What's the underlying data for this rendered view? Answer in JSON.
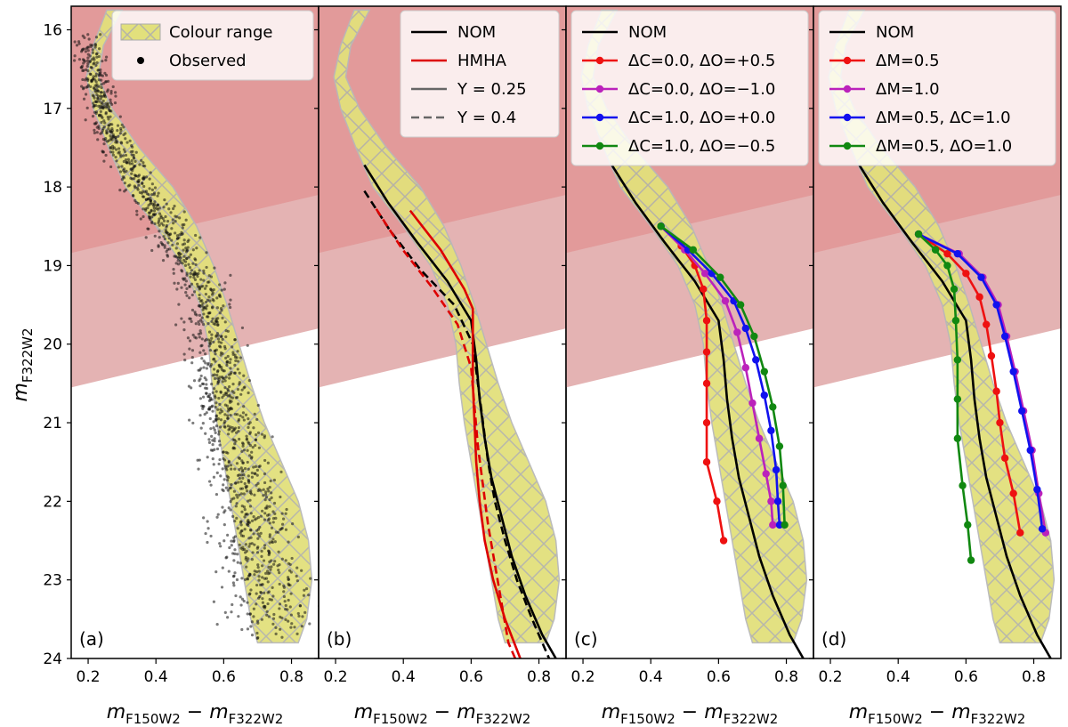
{
  "figure": {
    "y_axis_label": "m",
    "y_axis_label_sub": "F322W2",
    "x_axis_label_parts": [
      "m",
      "F150W2",
      " − m",
      "F322W2"
    ]
  },
  "chart_data": [
    {
      "panel": "(a)",
      "type": "scatter",
      "xlim": [
        0.15,
        0.88
      ],
      "ylim": [
        24,
        15.7
      ],
      "xticks": [
        "0.2",
        "0.4",
        "0.6",
        "0.8"
      ],
      "yticks": [
        "16",
        "17",
        "18",
        "19",
        "20",
        "21",
        "22",
        "23",
        "24"
      ],
      "shading": {
        "dark_band_below": [
          18.84,
          18.1
        ],
        "light_band_below": [
          20.55,
          19.8
        ]
      },
      "legend": [
        {
          "label": "Colour range",
          "kind": "patch"
        },
        {
          "label": "Observed",
          "kind": "dot"
        }
      ],
      "observed_ridge": {
        "y": [
          16.0,
          16.5,
          17.0,
          17.5,
          18.0,
          18.5,
          19.0,
          19.5,
          20.0,
          20.5,
          21.0,
          21.5,
          22.0,
          22.5,
          23.0,
          23.5
        ],
        "x": [
          0.19,
          0.21,
          0.24,
          0.29,
          0.35,
          0.43,
          0.5,
          0.55,
          0.57,
          0.59,
          0.61,
          0.64,
          0.67,
          0.69,
          0.72,
          0.75
        ],
        "n_points": 1500
      }
    },
    {
      "panel": "(b)",
      "type": "line",
      "series": [
        {
          "name": "NOM",
          "color": "#000000",
          "dash": false,
          "y": [
            17.72,
            18.2,
            18.7,
            19.2,
            19.7,
            20.2,
            20.7,
            21.2,
            21.7,
            22.2,
            22.7,
            23.2,
            23.7,
            24.0
          ],
          "x": [
            0.285,
            0.355,
            0.44,
            0.53,
            0.6,
            0.615,
            0.625,
            0.64,
            0.66,
            0.69,
            0.72,
            0.76,
            0.81,
            0.85
          ]
        },
        {
          "name": "NOM Y=0.4",
          "color": "#000000",
          "dash": true,
          "y": [
            18.05,
            18.55,
            19.05,
            19.5,
            20.0,
            20.5,
            21.0,
            21.5,
            22.0,
            22.5,
            23.0,
            23.5,
            24.0
          ],
          "x": [
            0.285,
            0.36,
            0.45,
            0.55,
            0.605,
            0.62,
            0.635,
            0.65,
            0.67,
            0.7,
            0.735,
            0.78,
            0.83
          ]
        },
        {
          "name": "HMHA",
          "color": "#dd0000",
          "dash": false,
          "y": [
            18.3,
            18.8,
            19.3,
            19.55,
            20.0,
            20.5,
            21.0,
            21.5,
            22.0,
            22.5,
            23.0,
            23.5,
            24.0
          ],
          "x": [
            0.42,
            0.51,
            0.58,
            0.605,
            0.605,
            0.605,
            0.61,
            0.615,
            0.625,
            0.64,
            0.665,
            0.7,
            0.745
          ]
        },
        {
          "name": "HMHA Y=0.4",
          "color": "#dd0000",
          "dash": true,
          "y": [
            18.28,
            18.78,
            19.28,
            19.75,
            20.3,
            20.8,
            21.3,
            21.8,
            22.3,
            22.8,
            23.3,
            23.8,
            24.0
          ],
          "x": [
            0.32,
            0.395,
            0.485,
            0.56,
            0.6,
            0.61,
            0.62,
            0.635,
            0.65,
            0.67,
            0.69,
            0.71,
            0.73
          ]
        }
      ],
      "legend": [
        {
          "label": "NOM",
          "color": "#000000",
          "dash": false
        },
        {
          "label": "HMHA",
          "color": "#dd0000",
          "dash": false
        },
        {
          "label": "Y = 0.25",
          "color": "#666666",
          "dash": false
        },
        {
          "label": "Y = 0.4",
          "color": "#666666",
          "dash": true
        }
      ]
    },
    {
      "panel": "(c)",
      "type": "line",
      "series": [
        {
          "name": "NOM",
          "color": "#000000",
          "markers": false,
          "y": [
            17.72,
            18.2,
            18.7,
            19.2,
            19.7,
            20.2,
            20.7,
            21.2,
            21.7,
            22.2,
            22.7,
            23.2,
            23.7,
            24.0
          ],
          "x": [
            0.285,
            0.355,
            0.44,
            0.53,
            0.6,
            0.615,
            0.625,
            0.64,
            0.66,
            0.69,
            0.72,
            0.76,
            0.81,
            0.85
          ]
        },
        {
          "name": "ΔC=0.0, ΔO=+0.5",
          "color": "#ee1111",
          "markers": true,
          "y": [
            18.5,
            18.75,
            19.0,
            19.3,
            19.7,
            20.1,
            20.5,
            21.0,
            21.5,
            22.0,
            22.5
          ],
          "x": [
            0.43,
            0.49,
            0.53,
            0.555,
            0.565,
            0.565,
            0.565,
            0.565,
            0.565,
            0.595,
            0.615
          ]
        },
        {
          "name": "ΔC=0.0, ΔO=−1.0",
          "color": "#bb22bb",
          "markers": true,
          "y": [
            18.5,
            18.8,
            19.1,
            19.45,
            19.85,
            20.3,
            20.75,
            21.2,
            21.65,
            22.0,
            22.3
          ],
          "x": [
            0.43,
            0.5,
            0.56,
            0.62,
            0.655,
            0.68,
            0.7,
            0.72,
            0.74,
            0.755,
            0.76
          ]
        },
        {
          "name": "ΔC=1.0, ΔO=+0.0",
          "color": "#1111ee",
          "markers": true,
          "y": [
            18.5,
            18.8,
            19.1,
            19.45,
            19.8,
            20.2,
            20.65,
            21.1,
            21.6,
            22.0,
            22.3
          ],
          "x": [
            0.43,
            0.51,
            0.58,
            0.645,
            0.68,
            0.71,
            0.735,
            0.755,
            0.77,
            0.775,
            0.78
          ]
        },
        {
          "name": "ΔC=1.0, ΔO=−0.5",
          "color": "#118811",
          "markers": true,
          "y": [
            18.5,
            18.8,
            19.15,
            19.5,
            19.9,
            20.35,
            20.8,
            21.3,
            21.8,
            22.3
          ],
          "x": [
            0.43,
            0.525,
            0.605,
            0.665,
            0.705,
            0.735,
            0.76,
            0.78,
            0.79,
            0.795
          ]
        }
      ],
      "legend": [
        {
          "label": "NOM",
          "color": "#000000",
          "markers": false
        },
        {
          "label": "ΔC=0.0, ΔO=+0.5",
          "color": "#ee1111",
          "markers": true
        },
        {
          "label": "ΔC=0.0, ΔO=−1.0",
          "color": "#bb22bb",
          "markers": true
        },
        {
          "label": "ΔC=1.0, ΔO=+0.0",
          "color": "#1111ee",
          "markers": true
        },
        {
          "label": "ΔC=1.0, ΔO=−0.5",
          "color": "#118811",
          "markers": true
        }
      ]
    },
    {
      "panel": "(d)",
      "type": "line",
      "series": [
        {
          "name": "NOM",
          "color": "#000000",
          "markers": false,
          "y": [
            17.72,
            18.2,
            18.7,
            19.2,
            19.7,
            20.2,
            20.7,
            21.2,
            21.7,
            22.2,
            22.7,
            23.2,
            23.7,
            24.0
          ],
          "x": [
            0.285,
            0.355,
            0.44,
            0.53,
            0.6,
            0.615,
            0.625,
            0.64,
            0.66,
            0.69,
            0.72,
            0.76,
            0.81,
            0.85
          ]
        },
        {
          "name": "ΔM=0.5",
          "color": "#ee1111",
          "markers": true,
          "y": [
            18.6,
            18.85,
            19.1,
            19.4,
            19.75,
            20.15,
            20.6,
            21.0,
            21.45,
            21.9,
            22.4
          ],
          "x": [
            0.46,
            0.545,
            0.6,
            0.64,
            0.66,
            0.675,
            0.69,
            0.7,
            0.715,
            0.74,
            0.76
          ]
        },
        {
          "name": "ΔM=1.0",
          "color": "#bb22bb",
          "markers": true,
          "y": [
            18.6,
            18.85,
            19.15,
            19.5,
            19.9,
            20.35,
            20.85,
            21.35,
            21.9,
            22.4
          ],
          "x": [
            0.46,
            0.58,
            0.65,
            0.695,
            0.72,
            0.745,
            0.77,
            0.795,
            0.815,
            0.835
          ]
        },
        {
          "name": "ΔM=0.5, ΔC=1.0",
          "color": "#1111ee",
          "markers": true,
          "y": [
            18.6,
            18.85,
            19.15,
            19.5,
            19.9,
            20.35,
            20.85,
            21.35,
            21.85,
            22.35
          ],
          "x": [
            0.46,
            0.575,
            0.645,
            0.69,
            0.715,
            0.74,
            0.765,
            0.79,
            0.81,
            0.825
          ]
        },
        {
          "name": "ΔM=0.5, ΔO=1.0",
          "color": "#118811",
          "markers": true,
          "y": [
            18.6,
            18.8,
            19.0,
            19.3,
            19.7,
            20.2,
            20.7,
            21.2,
            21.8,
            22.3,
            22.75
          ],
          "x": [
            0.46,
            0.51,
            0.545,
            0.565,
            0.57,
            0.575,
            0.575,
            0.575,
            0.59,
            0.605,
            0.615
          ]
        }
      ],
      "legend": [
        {
          "label": "NOM",
          "color": "#000000",
          "markers": false
        },
        {
          "label": "ΔM=0.5",
          "color": "#ee1111",
          "markers": true
        },
        {
          "label": "ΔM=1.0",
          "color": "#bb22bb",
          "markers": true
        },
        {
          "label": "ΔM=0.5, ΔC=1.0",
          "color": "#1111ee",
          "markers": true
        },
        {
          "label": "ΔM=0.5, ΔO=1.0",
          "color": "#118811",
          "markers": true
        }
      ]
    }
  ],
  "colour_range": {
    "y": [
      15.75,
      16.2,
      16.6,
      17.0,
      17.5,
      18.0,
      18.5,
      19.0,
      19.5,
      20.0,
      20.5,
      21.0,
      21.5,
      22.0,
      22.5,
      23.0,
      23.5,
      23.8
    ],
    "left": [
      0.255,
      0.215,
      0.195,
      0.215,
      0.26,
      0.31,
      0.4,
      0.48,
      0.53,
      0.555,
      0.565,
      0.58,
      0.6,
      0.62,
      0.64,
      0.66,
      0.68,
      0.7
    ],
    "right": [
      0.3,
      0.245,
      0.23,
      0.27,
      0.35,
      0.45,
      0.52,
      0.57,
      0.61,
      0.645,
      0.68,
      0.72,
      0.77,
      0.82,
      0.85,
      0.86,
      0.845,
      0.82
    ]
  }
}
